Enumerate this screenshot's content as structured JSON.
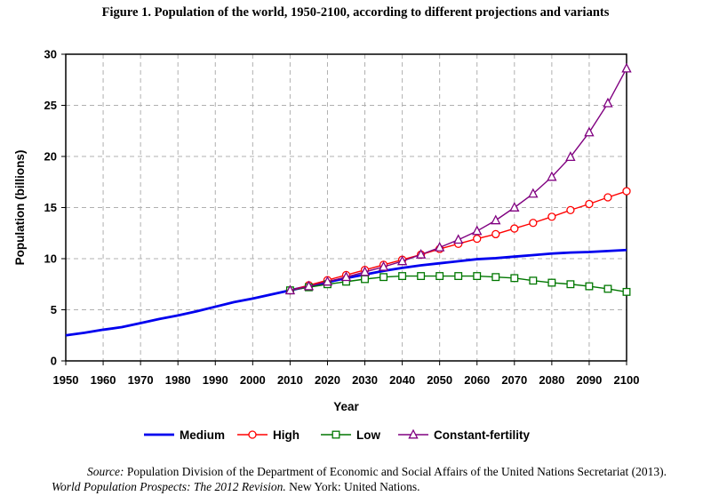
{
  "figure": {
    "title": "Figure 1.  Population of the world, 1950-2100, according to different projections and variants",
    "source_label": "Source:",
    "source_text": " Population Division of the Department of Economic and Social Affairs of the United Nations Secretariat (2013).",
    "source_pub_italic": "World Population Prospects: The 2012 Revision.",
    "source_pub_rest": " New York: United Nations."
  },
  "chart_data": {
    "type": "line",
    "title": "",
    "xlabel": "Year",
    "ylabel": "Population (billions)",
    "xlim": [
      1950,
      2100
    ],
    "ylim": [
      0,
      30
    ],
    "xticks": [
      1950,
      1960,
      1970,
      1980,
      1990,
      2000,
      2010,
      2020,
      2030,
      2040,
      2050,
      2060,
      2070,
      2080,
      2090,
      2100
    ],
    "yticks": [
      0,
      5,
      10,
      15,
      20,
      25,
      30
    ],
    "grid": true,
    "legend_position": "bottom",
    "series": [
      {
        "name": "Medium",
        "color": "#0000ee",
        "marker": "none",
        "x": [
          1950,
          1955,
          1960,
          1965,
          1970,
          1975,
          1980,
          1985,
          1990,
          1995,
          2000,
          2005,
          2010,
          2015,
          2020,
          2025,
          2030,
          2035,
          2040,
          2045,
          2050,
          2055,
          2060,
          2065,
          2070,
          2075,
          2080,
          2085,
          2090,
          2095,
          2100
        ],
        "values": [
          2.5,
          2.75,
          3.05,
          3.3,
          3.7,
          4.1,
          4.45,
          4.85,
          5.3,
          5.75,
          6.1,
          6.5,
          6.9,
          7.3,
          7.7,
          8.1,
          8.45,
          8.8,
          9.1,
          9.35,
          9.55,
          9.75,
          9.95,
          10.05,
          10.2,
          10.35,
          10.5,
          10.6,
          10.65,
          10.75,
          10.85
        ]
      },
      {
        "name": "High",
        "color": "#ff0000",
        "marker": "circle",
        "x": [
          2010,
          2015,
          2020,
          2025,
          2030,
          2035,
          2040,
          2045,
          2050,
          2055,
          2060,
          2065,
          2070,
          2075,
          2080,
          2085,
          2090,
          2095,
          2100
        ],
        "values": [
          6.9,
          7.4,
          7.9,
          8.4,
          8.9,
          9.4,
          9.9,
          10.4,
          10.95,
          11.45,
          11.95,
          12.4,
          12.95,
          13.5,
          14.1,
          14.75,
          15.35,
          16.0,
          16.6
        ]
      },
      {
        "name": "Low",
        "color": "#007700",
        "marker": "square",
        "x": [
          2010,
          2015,
          2020,
          2025,
          2030,
          2035,
          2040,
          2045,
          2050,
          2055,
          2060,
          2065,
          2070,
          2075,
          2080,
          2085,
          2090,
          2095,
          2100
        ],
        "values": [
          6.9,
          7.2,
          7.5,
          7.75,
          8.0,
          8.2,
          8.3,
          8.3,
          8.3,
          8.3,
          8.3,
          8.2,
          8.1,
          7.85,
          7.65,
          7.5,
          7.3,
          7.05,
          6.75
        ]
      },
      {
        "name": "Constant-fertility",
        "color": "#800080",
        "marker": "triangle",
        "x": [
          2010,
          2015,
          2020,
          2025,
          2030,
          2035,
          2040,
          2045,
          2050,
          2055,
          2060,
          2065,
          2070,
          2075,
          2080,
          2085,
          2090,
          2095,
          2100
        ],
        "values": [
          6.9,
          7.3,
          7.75,
          8.2,
          8.7,
          9.2,
          9.75,
          10.4,
          11.1,
          11.85,
          12.7,
          13.75,
          15.0,
          16.35,
          18.0,
          19.95,
          22.35,
          25.2,
          28.6
        ]
      }
    ]
  }
}
